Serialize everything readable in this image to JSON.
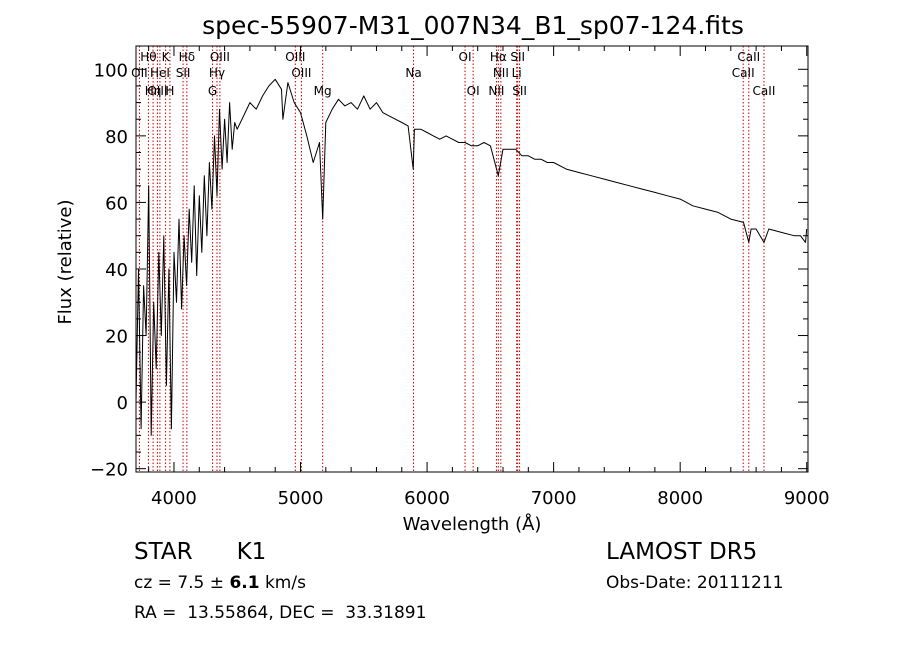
{
  "chart_data": {
    "type": "line",
    "title": "spec-55907-M31_007N34_B1_sp07-124.fits",
    "xlabel": "Wavelength (Å)",
    "ylabel": "Flux (relative)",
    "xlim": [
      3700,
      9010
    ],
    "ylim": [
      -21,
      107
    ],
    "xticks": [
      4000,
      5000,
      6000,
      7000,
      8000,
      9000
    ],
    "yticks": [
      -20,
      0,
      20,
      40,
      60,
      80,
      100
    ],
    "grid": false,
    "series": [
      {
        "x": [
          3700,
          3720,
          3740,
          3760,
          3780,
          3800,
          3820,
          3840,
          3860,
          3880,
          3900,
          3920,
          3940,
          3960,
          3980,
          4000,
          4020,
          4040,
          4060,
          4080,
          4100,
          4120,
          4140,
          4160,
          4180,
          4200,
          4220,
          4240,
          4260,
          4280,
          4300,
          4320,
          4340,
          4360,
          4380,
          4400,
          4420,
          4440,
          4460,
          4480,
          4500,
          4550,
          4600,
          4650,
          4700,
          4750,
          4800,
          4850,
          4861,
          4900,
          4950,
          5000,
          5050,
          5100,
          5150,
          5175,
          5200,
          5250,
          5300,
          5350,
          5400,
          5450,
          5500,
          5550,
          5600,
          5650,
          5700,
          5750,
          5800,
          5850,
          5890,
          5900,
          5950,
          6000,
          6050,
          6100,
          6150,
          6200,
          6250,
          6300,
          6350,
          6400,
          6450,
          6500,
          6563,
          6600,
          6650,
          6700,
          6750,
          6800,
          6850,
          6900,
          6950,
          7000,
          7100,
          7200,
          7300,
          7400,
          7500,
          7600,
          7700,
          7800,
          7900,
          8000,
          8100,
          8200,
          8300,
          8400,
          8500,
          8542,
          8560,
          8600,
          8662,
          8700,
          8800,
          8900,
          8950,
          8990,
          9000
        ],
        "y": [
          0,
          40,
          -8,
          35,
          20,
          65,
          -10,
          30,
          10,
          45,
          20,
          50,
          5,
          40,
          -8,
          45,
          30,
          55,
          28,
          50,
          35,
          58,
          42,
          65,
          38,
          62,
          45,
          68,
          50,
          72,
          58,
          80,
          62,
          88,
          70,
          85,
          72,
          90,
          76,
          84,
          82,
          86,
          90,
          88,
          92,
          95,
          97,
          94,
          85,
          96,
          90,
          87,
          80,
          72,
          78,
          55,
          84,
          88,
          91,
          89,
          90,
          88,
          92,
          88,
          90,
          87,
          86,
          85,
          84,
          83,
          70,
          82,
          82,
          81,
          80,
          79,
          80,
          79,
          78,
          78,
          77,
          77,
          78,
          77,
          68,
          76,
          76,
          76,
          74,
          74,
          73,
          73,
          72,
          72,
          70,
          69,
          68,
          67,
          66,
          65,
          64,
          63,
          62,
          61,
          59,
          58,
          57,
          55,
          54,
          48,
          52,
          52,
          48,
          52,
          51,
          50,
          50,
          48,
          52
        ]
      }
    ],
    "lines": [
      {
        "label": "Hθ",
        "wave": 3798,
        "row": 1
      },
      {
        "label": "OII",
        "wave": 3727,
        "row": 2
      },
      {
        "label": "OIII",
        "wave": 3869,
        "row": 3
      },
      {
        "label": "K",
        "wave": 3934,
        "row": 1
      },
      {
        "label": "HeI",
        "wave": 3889,
        "row": 2
      },
      {
        "label": "Hη",
        "wave": 3835,
        "row": 3
      },
      {
        "label": "SII",
        "wave": 4072,
        "row": 2
      },
      {
        "label": "H",
        "wave": 3968,
        "row": 3
      },
      {
        "label": "Hδ",
        "wave": 4102,
        "row": 1
      },
      {
        "label": "OIII",
        "wave": 4363,
        "row": 1
      },
      {
        "label": "Hγ",
        "wave": 4340,
        "row": 2
      },
      {
        "label": "G",
        "wave": 4305,
        "row": 3
      },
      {
        "label": "OIII",
        "wave": 4959,
        "row": 1
      },
      {
        "label": "OIII",
        "wave": 5007,
        "row": 2
      },
      {
        "label": "Mg",
        "wave": 5175,
        "row": 3
      },
      {
        "label": "Na",
        "wave": 5893,
        "row": 2
      },
      {
        "label": "OI",
        "wave": 6300,
        "row": 1
      },
      {
        "label": "OI",
        "wave": 6364,
        "row": 3
      },
      {
        "label": "Hα",
        "wave": 6563,
        "row": 1
      },
      {
        "label": "NII",
        "wave": 6583,
        "row": 2
      },
      {
        "label": "NII",
        "wave": 6548,
        "row": 3
      },
      {
        "label": "SII",
        "wave": 6716,
        "row": 1
      },
      {
        "label": "Li",
        "wave": 6708,
        "row": 2
      },
      {
        "label": "SII",
        "wave": 6731,
        "row": 3
      },
      {
        "label": "CaII",
        "wave": 8542,
        "row": 1
      },
      {
        "label": "CaII",
        "wave": 8498,
        "row": 2
      },
      {
        "label": "CaII",
        "wave": 8662,
        "row": 3
      }
    ]
  },
  "info": {
    "class": "STAR",
    "subclass": "K1",
    "cz_label": "cz = ",
    "cz_value": "7.5",
    "cz_pm": " ± ",
    "cz_err": "6.1",
    "cz_unit": " km/s",
    "survey": "LAMOST DR5",
    "obs_date": "Obs-Date: 20111211",
    "radec": "RA =  13.55864, DEC =  33.31891"
  },
  "colors": {
    "spectrum": "#000000",
    "line_markers": "#cc0000",
    "axes": "#000000"
  }
}
